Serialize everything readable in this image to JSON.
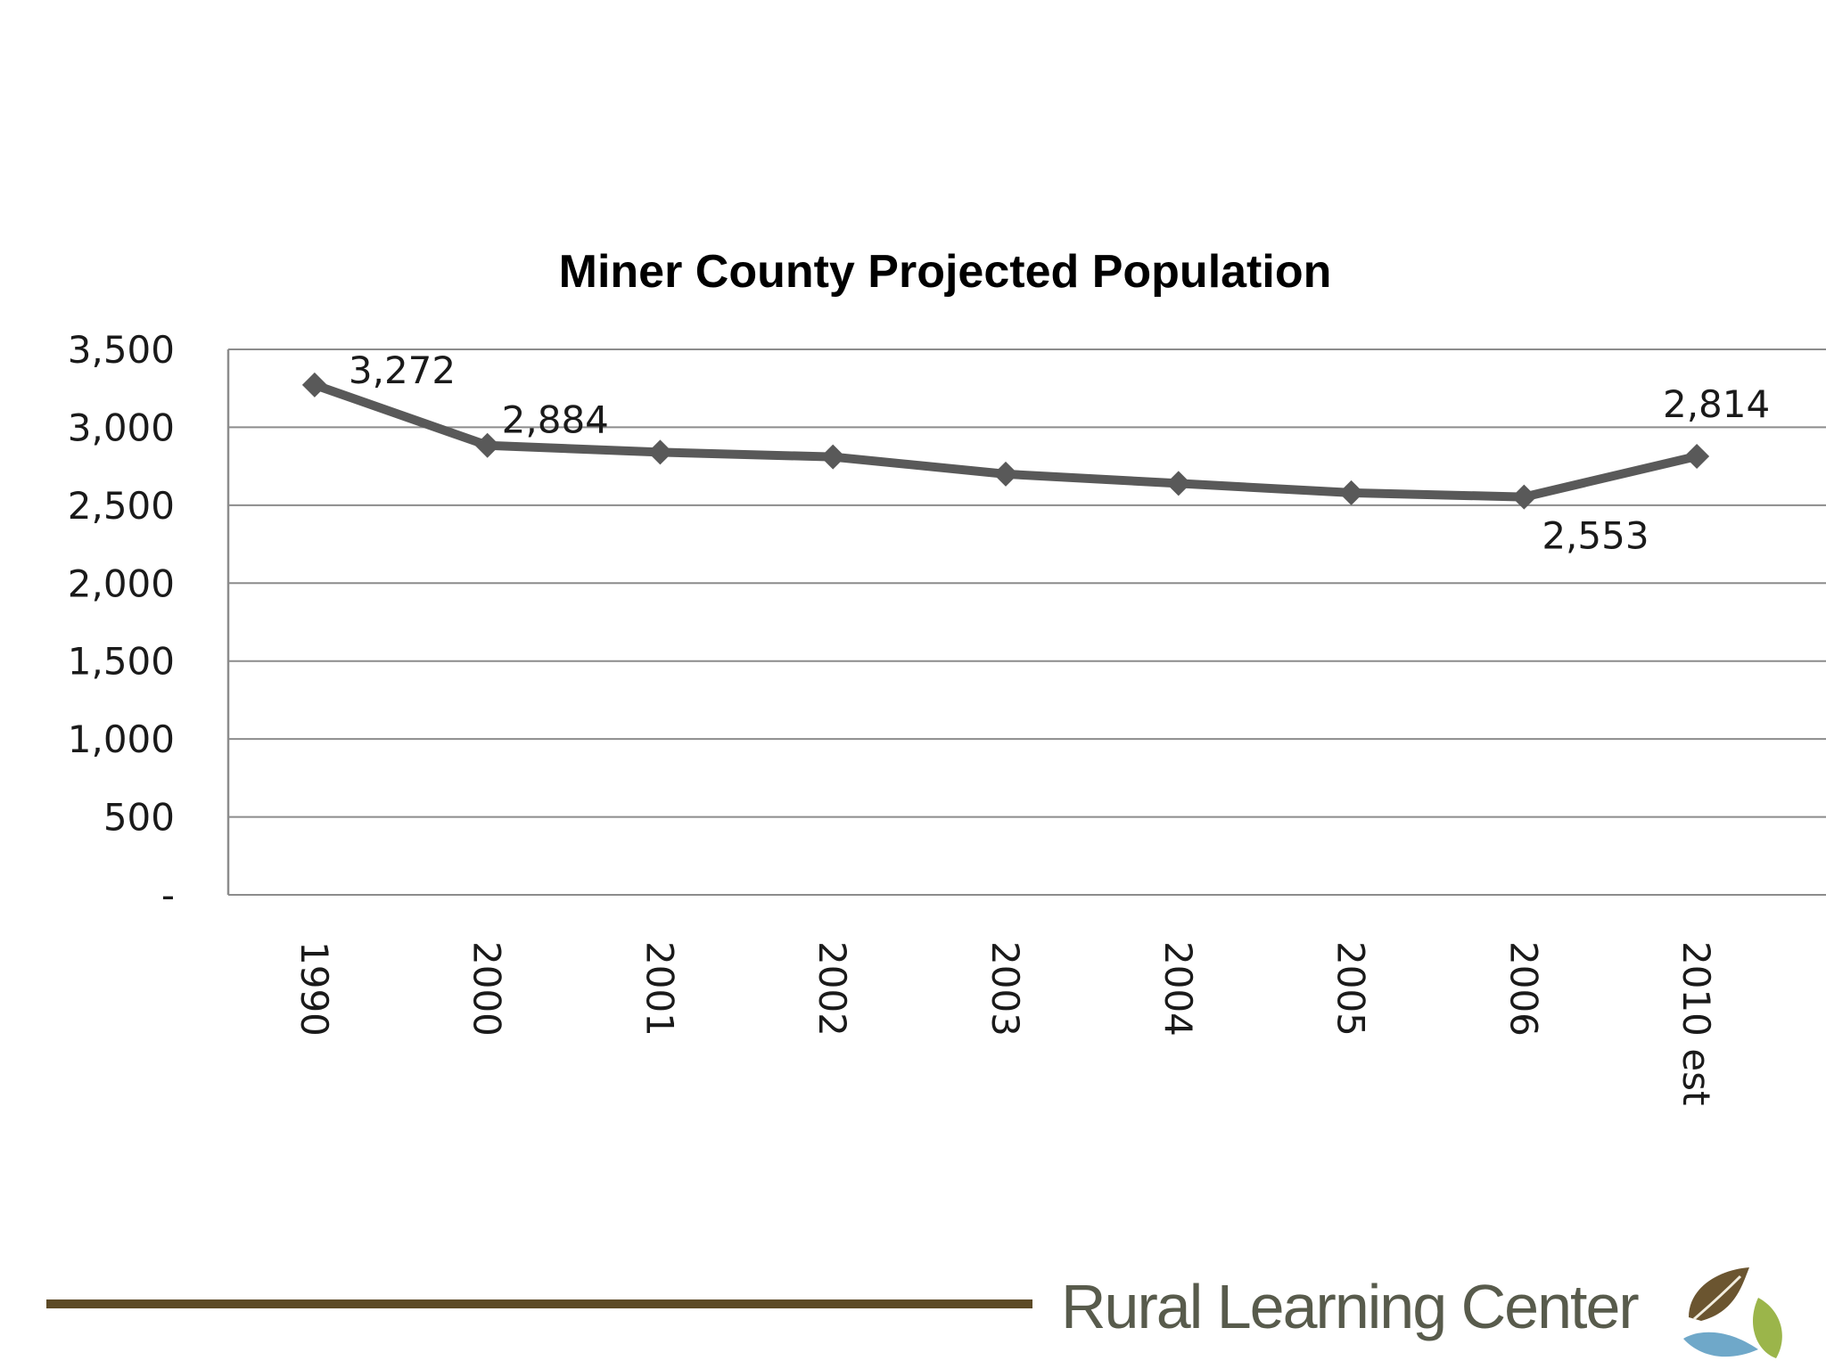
{
  "chart_data": {
    "type": "line",
    "title": "Miner County Projected Population",
    "xlabel": "",
    "ylabel": "",
    "categories": [
      "1990",
      "2000",
      "2001",
      "2002",
      "2003",
      "2004",
      "2005",
      "2006",
      "2010 est"
    ],
    "series": [
      {
        "values": [
          3272,
          2884,
          2840,
          2810,
          2700,
          2640,
          2580,
          2553,
          2814
        ],
        "color": "#595959"
      }
    ],
    "data_labels": [
      {
        "category": "1990",
        "text": "3,272"
      },
      {
        "category": "2000",
        "text": "2,884"
      },
      {
        "category": "2006",
        "text": "2,553"
      },
      {
        "category": "2010 est",
        "text": "2,814"
      }
    ],
    "ylim": [
      0,
      3500
    ],
    "yticks": [
      0,
      500,
      1000,
      1500,
      2000,
      2500,
      3000,
      3500
    ],
    "ytick_labels": [
      "-",
      "500",
      "1,000",
      "1,500",
      "2,000",
      "2,500",
      "3,000",
      "3,500"
    ],
    "grid": true,
    "legend": "none",
    "marker": "diamond"
  },
  "footer": {
    "logo_text": "Rural Learning Center",
    "rule_color": "#5c4a26",
    "logo_icon": "leaf-icon"
  }
}
